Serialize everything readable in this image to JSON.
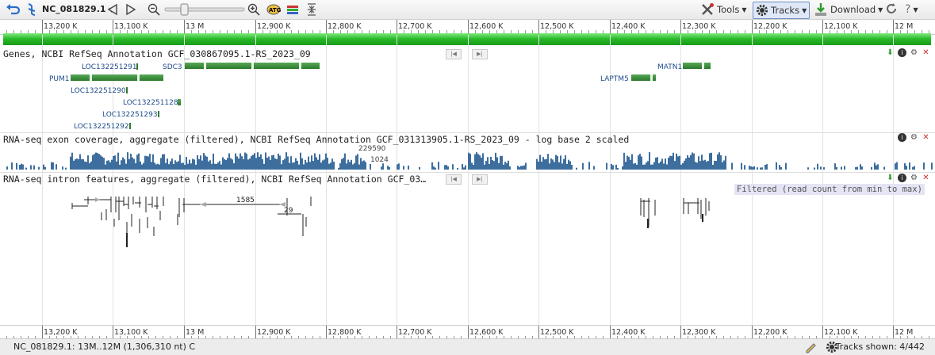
{
  "toolbar": {
    "sequence": "NC_081829.1",
    "tools_label": "Tools",
    "tracks_label": "Tracks",
    "download_label": "Download",
    "help_label": "?",
    "zoom_slider_value": 0.22
  },
  "ruler": {
    "labels": [
      "13,200 K",
      "13,100 K",
      "13 M",
      "12,900 K",
      "12,800 K",
      "12,700 K",
      "12,600 K",
      "12,500 K",
      "12,400 K",
      "12,300 K",
      "12,200 K",
      "12,100 K",
      "12 M"
    ]
  },
  "tracks": {
    "genes": {
      "title": "Genes, NCBI RefSeq Annotation GCF_030867095.1-RS_2023_09",
      "genes": [
        "LOC132251291",
        "SDC3",
        "MATN1",
        "PUM1",
        "LAPTM5",
        "LOC132251290",
        "LOC132251128",
        "LOC132251293",
        "LOC132251292"
      ]
    },
    "exon": {
      "title": "RNA-seq exon coverage, aggregate (filtered), NCBI RefSeq Annotation GCF_031313905.1-RS_2023_09 - log base 2 scaled",
      "scale_top": "229590",
      "scale_mid": "1024"
    },
    "intron": {
      "title": "RNA-seq intron features, aggregate (filtered), NCBI RefSeq Annotation GCF_03…",
      "filter_note": "Filtered (read count from min to max)",
      "count_1": "1585",
      "count_2": "29"
    }
  },
  "status": {
    "location": "NC_081829.1: 13M..12M (1,306,310 nt) C",
    "tracks_shown": "Tracks shown: 4/442"
  },
  "colors": {
    "gene": "#2c7a2c",
    "coverage": "#3d6e9e",
    "label": "#1e4b8a"
  }
}
